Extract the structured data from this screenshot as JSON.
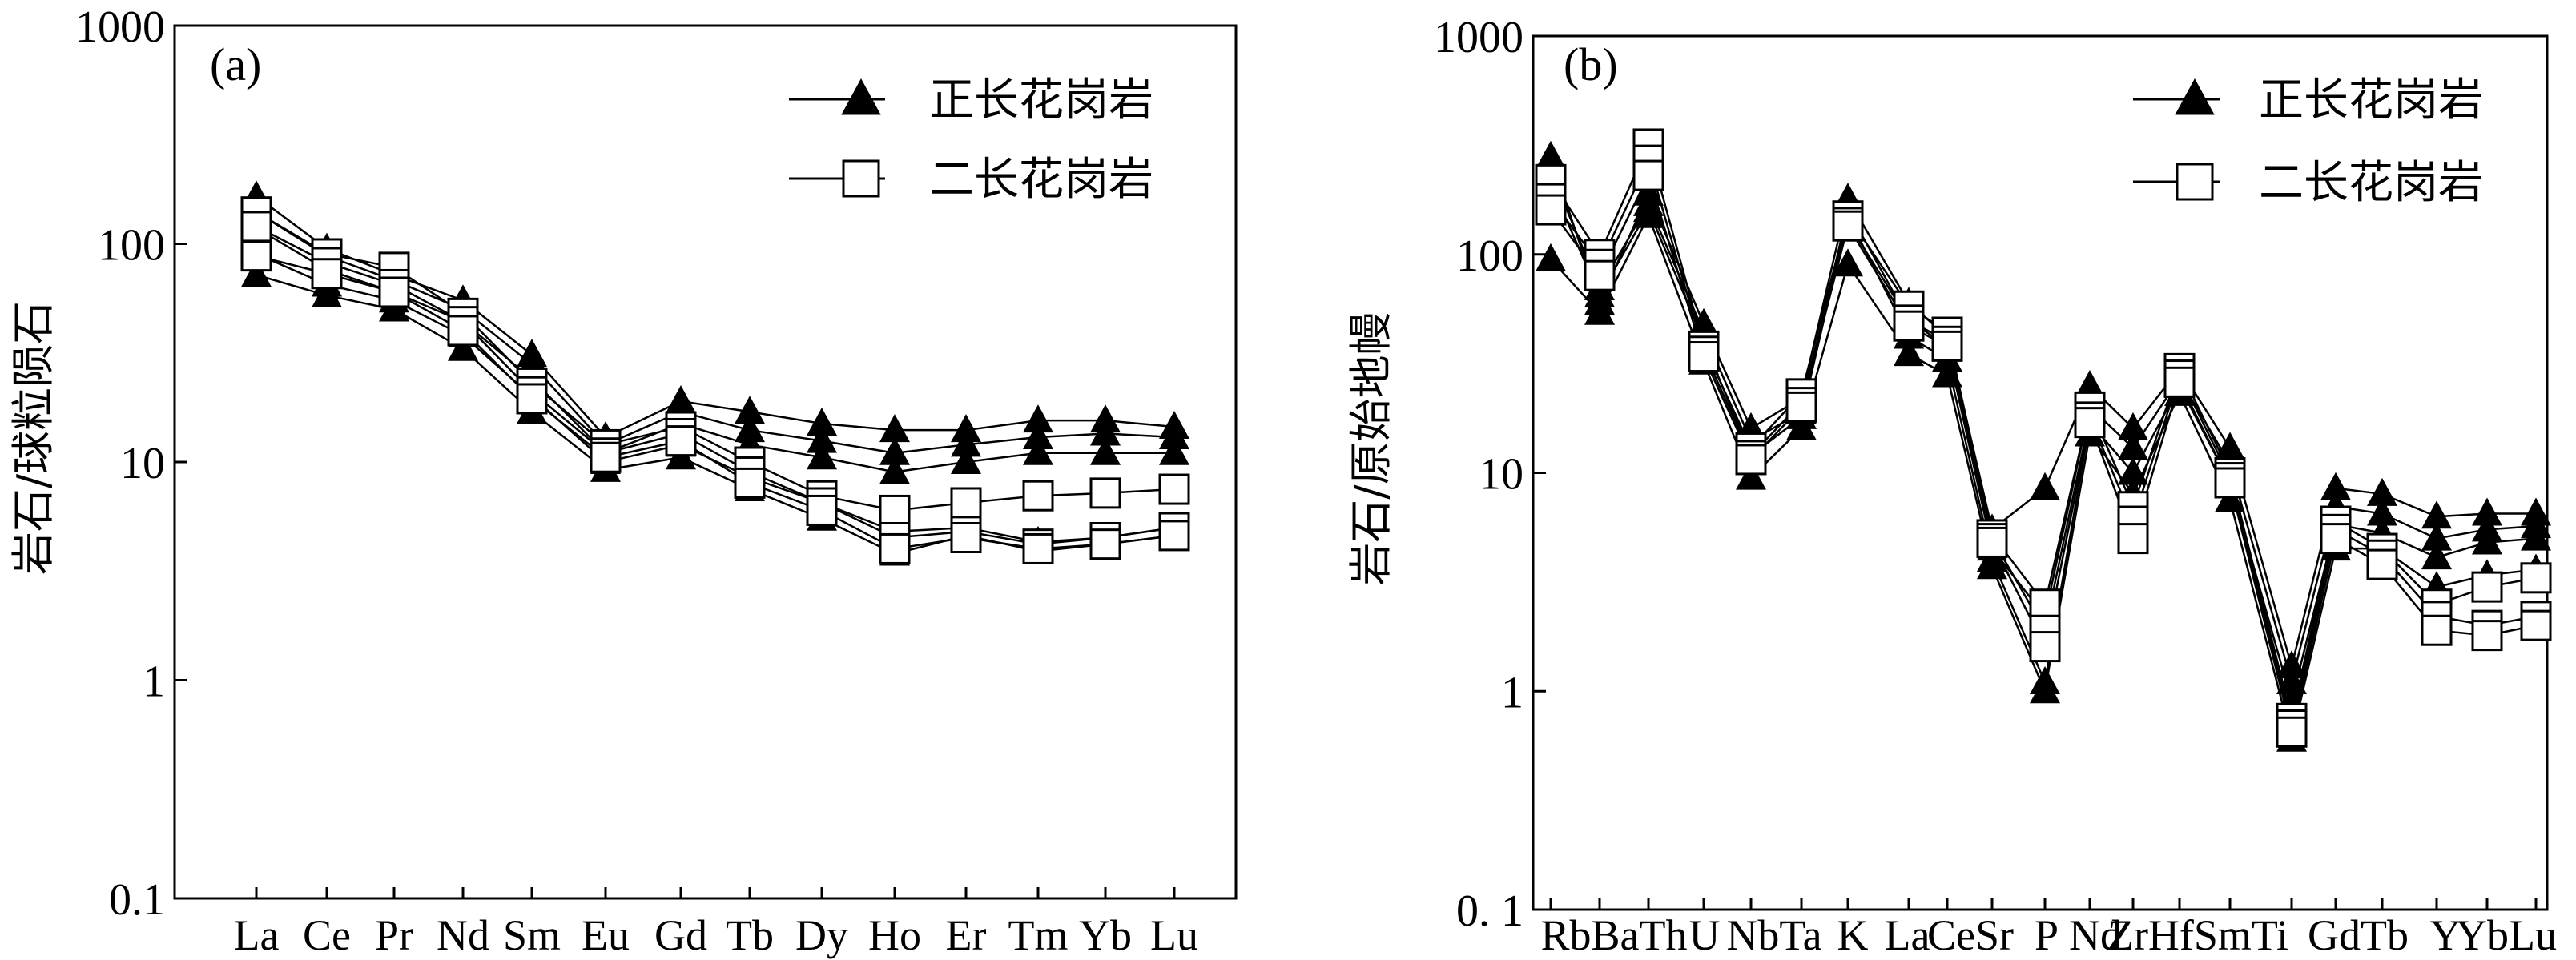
{
  "chart_data": [
    {
      "type": "line",
      "panel_label": "(a)",
      "ylabel": "岩石/球粒陨石",
      "yscale": "log",
      "ylim": [
        0.1,
        1000
      ],
      "yticks": [
        "0.1",
        "1",
        "10",
        "100",
        "1000"
      ],
      "categories": [
        "La",
        "Ce",
        "Pr",
        "Nd",
        "Sm",
        "Eu",
        "Gd",
        "Tb",
        "Dy",
        "Ho",
        "Er",
        "Tm",
        "Yb",
        "Lu"
      ],
      "legend": [
        {
          "label": "正长花岗岩",
          "marker": "filled-triangle"
        },
        {
          "label": "二长花岗岩",
          "marker": "open-square"
        }
      ],
      "series": [
        {
          "group": "正长花岗岩",
          "values": [
            165,
            95,
            72,
            55,
            31,
            13,
            19,
            17,
            15,
            14,
            14,
            15.5,
            15.5,
            14.5
          ]
        },
        {
          "group": "正长花岗岩",
          "values": [
            140,
            88,
            68,
            50,
            28,
            12,
            17,
            14,
            12.5,
            11,
            12,
            13,
            13.5,
            13
          ]
        },
        {
          "group": "正长花岗岩",
          "values": [
            118,
            76,
            60,
            44,
            24,
            11,
            15,
            12,
            10.5,
            9,
            10,
            11,
            11,
            11
          ]
        },
        {
          "group": "正长花岗岩",
          "values": [
            90,
            65,
            55,
            38,
            20,
            10,
            12,
            8.5,
            6.5,
            4.8,
            5,
            4.3,
            4.5,
            5
          ]
        },
        {
          "group": "正长花岗岩",
          "values": [
            72,
            58,
            50,
            33,
            17,
            9.2,
            10.5,
            7.5,
            5.5,
            3.8,
            4.6,
            3.9,
            4.2,
            4.6
          ]
        },
        {
          "group": "二长花岗岩",
          "values": [
            140,
            90,
            78,
            48,
            23,
            12,
            14.5,
            10,
            7,
            6,
            6.5,
            7,
            7.2,
            7.5
          ]
        },
        {
          "group": "二长花岗岩",
          "values": [
            120,
            82,
            65,
            44,
            21,
            11,
            13.5,
            9,
            6.5,
            4.5,
            4.8,
            4.2,
            4.5,
            5
          ]
        },
        {
          "group": "二长花岗岩",
          "values": [
            88,
            73,
            60,
            40,
            19.5,
            10.5,
            12.5,
            8,
            6,
            4,
            4.5,
            4,
            4.2,
            4.6
          ]
        }
      ]
    },
    {
      "type": "line",
      "panel_label": "(b)",
      "ylabel": "岩石/原始地幔",
      "yscale": "log",
      "ylim": [
        0.1,
        1000
      ],
      "yticks": [
        "0. 1",
        "1",
        "10",
        "100",
        "1000"
      ],
      "categories": [
        "Rb",
        "Ba",
        "Th",
        "U",
        "Nb",
        "Ta",
        "K",
        "La",
        "Ce",
        "Sr",
        "P",
        "Nd",
        "Zr",
        "Hf",
        "Sm",
        "Ti",
        "Gd",
        "Tb",
        "Y",
        "Yb",
        "Lu"
      ],
      "category_axis_labels": [
        "RbBaTh",
        "U",
        "NbTa",
        "K",
        "La",
        "CeSr",
        "P",
        "Nd",
        "ZrHfSmTi",
        "GdTb",
        "Y",
        "YbLu"
      ],
      "legend": [
        {
          "label": "正长花岗岩",
          "marker": "filled-triangle"
        },
        {
          "label": "二长花岗岩",
          "marker": "open-square"
        }
      ],
      "series": [
        {
          "group": "正长花岗岩",
          "values": [
            280,
            60,
            190,
            48,
            16,
            22,
            180,
            60,
            42,
            5.5,
            8.5,
            25,
            16,
            30,
            13,
            1.3,
            8.5,
            8,
            6.3,
            6.5,
            6.5
          ]
        },
        {
          "group": "正长花岗岩",
          "values": [
            240,
            70,
            170,
            44,
            14,
            19,
            160,
            50,
            38,
            4.5,
            2.2,
            20,
            13,
            27,
            11,
            1.1,
            7,
            6.5,
            5,
            5.5,
            5.7
          ]
        },
        {
          "group": "正长花岗岩",
          "values": [
            210,
            65,
            160,
            40,
            12,
            18,
            150,
            42,
            33,
            4,
            1.1,
            17,
            10,
            25,
            9,
            0.9,
            5.8,
            5.3,
            4.1,
            4.8,
            5
          ]
        },
        {
          "group": "正长花岗岩",
          "values": [
            95,
            54,
            150,
            32,
            9.5,
            16,
            90,
            35,
            28,
            3.7,
            1,
            15,
            8,
            23,
            7.5,
            0.6,
            4.5,
            4.5,
            3,
            3.4,
            3.6
          ]
        },
        {
          "group": "二长花岗岩",
          "values": [
            220,
            100,
            320,
            38,
            13,
            23,
            150,
            58,
            44,
            5.2,
            2.5,
            20,
            7,
            30,
            10,
            0.75,
            6,
            4.5,
            2.5,
            3,
            3.3
          ]
        },
        {
          "group": "二长花岗岩",
          "values": [
            180,
            90,
            270,
            36,
            12,
            21,
            140,
            50,
            40,
            5,
            1.9,
            18,
            6,
            28,
            9.5,
            0.7,
            5.5,
            4.2,
            2.2,
            2,
            2.2
          ]
        },
        {
          "group": "二长花岗岩",
          "values": [
            160,
            80,
            230,
            34,
            11.5,
            20,
            135,
            47,
            38,
            4.8,
            1.6,
            17,
            5,
            26,
            9,
            0.65,
            5,
            3.8,
            1.9,
            1.8,
            2
          ]
        }
      ]
    }
  ]
}
